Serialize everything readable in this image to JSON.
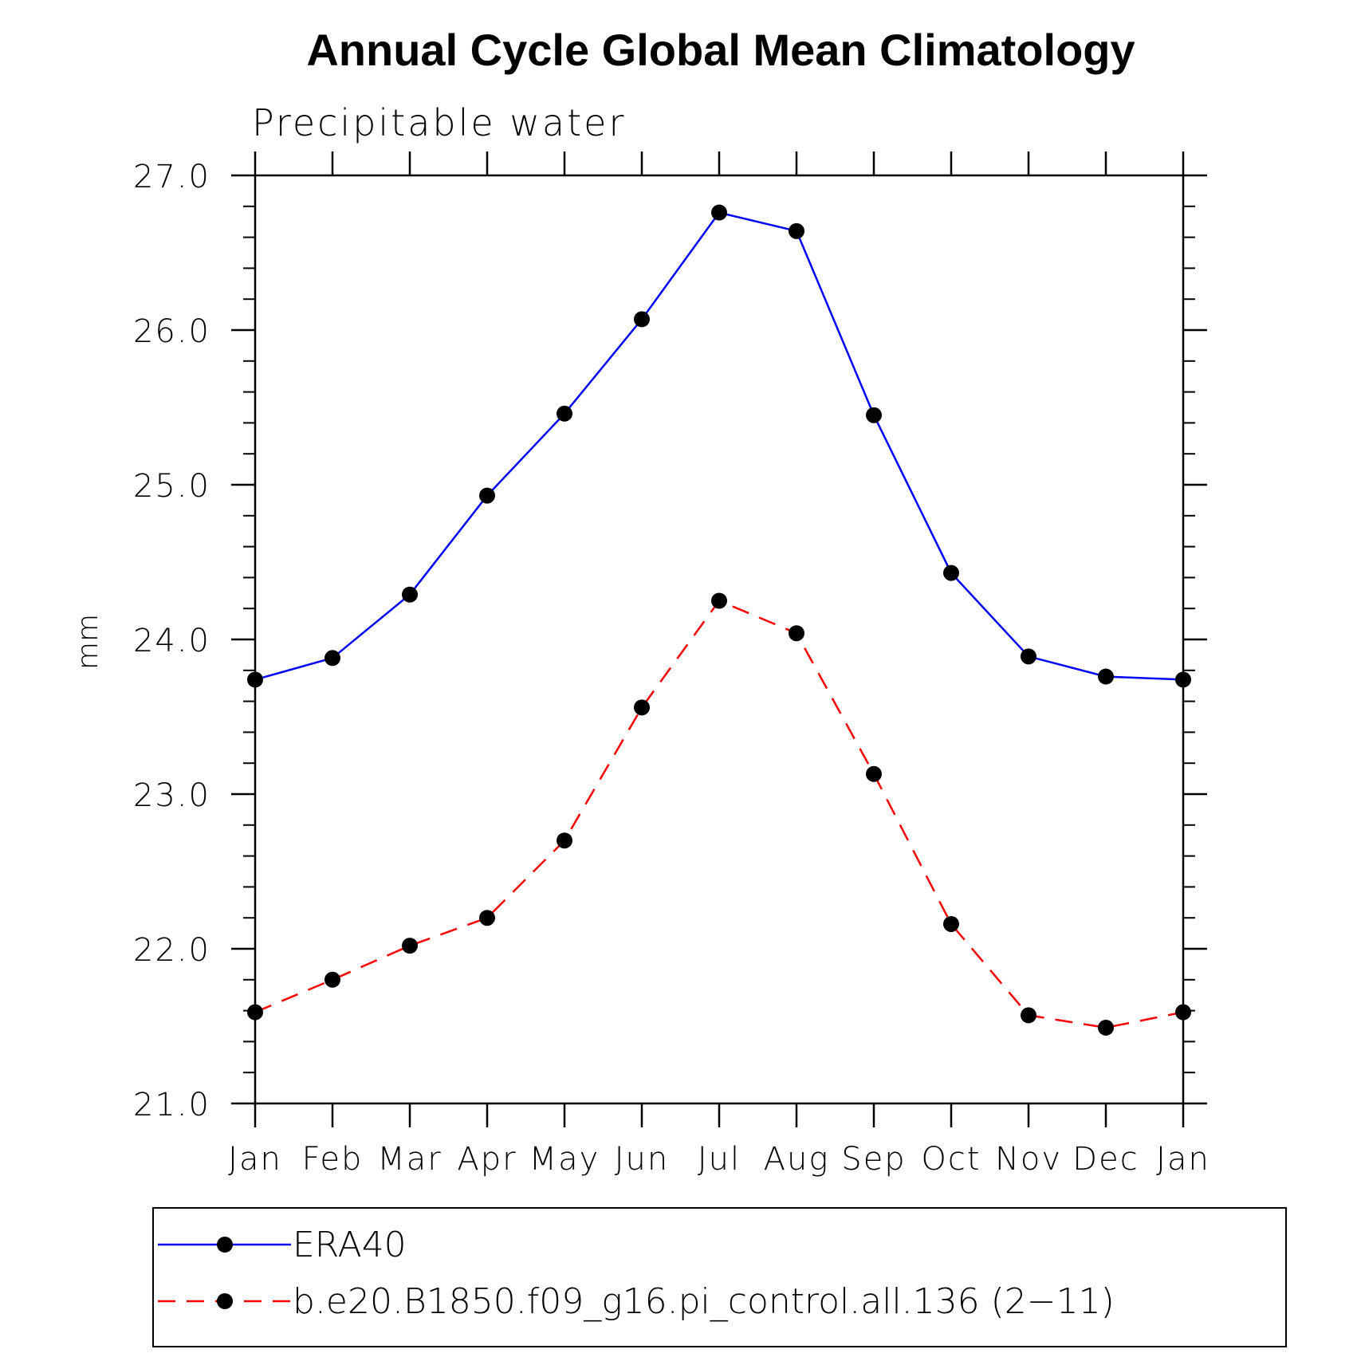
{
  "chart_data": {
    "type": "line",
    "title": "Annual Cycle Global Mean Climatology",
    "subtitle": "Precipitable water",
    "xlabel": "",
    "ylabel": "mm",
    "categories": [
      "Jan",
      "Feb",
      "Mar",
      "Apr",
      "May",
      "Jun",
      "Jul",
      "Aug",
      "Sep",
      "Oct",
      "Nov",
      "Dec",
      "Jan"
    ],
    "ylim": [
      21.0,
      27.0
    ],
    "yticks": [
      "21.0",
      "22.0",
      "23.0",
      "24.0",
      "25.0",
      "26.0",
      "27.0"
    ],
    "grid": false,
    "legend_position": "bottom",
    "series": [
      {
        "name": "ERA40",
        "color": "#0000ff",
        "style": "solid",
        "values": [
          23.74,
          23.88,
          24.29,
          24.93,
          25.46,
          26.07,
          26.76,
          26.64,
          25.45,
          24.43,
          23.89,
          23.76,
          23.74
        ]
      },
      {
        "name": "b.e20.B1850.f09_g16.pi_control.all.136 (2−11)",
        "color": "#ff0000",
        "style": "dashed",
        "values": [
          21.59,
          21.8,
          22.02,
          22.2,
          22.7,
          23.56,
          24.25,
          24.04,
          23.13,
          22.16,
          21.57,
          21.49,
          21.59
        ]
      }
    ]
  }
}
